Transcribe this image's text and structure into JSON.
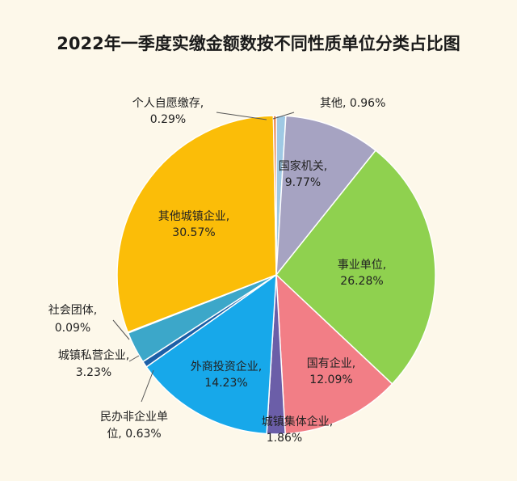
{
  "chart_data": {
    "type": "pie",
    "title": "2022年一季度实缴金额数按不同性质单位分类占比图",
    "slices": [
      {
        "name": "其他",
        "value": 0.96,
        "label": "0.96%",
        "color": "#9fc9e4"
      },
      {
        "name": "国家机关",
        "value": 9.77,
        "label": "9.77%",
        "color": "#a6a3c2"
      },
      {
        "name": "事业单位",
        "value": 26.28,
        "label": "26.28%",
        "color": "#8fd14f"
      },
      {
        "name": "国有企业",
        "value": 12.09,
        "label": "12.09%",
        "color": "#f27e86"
      },
      {
        "name": "城镇集体企业",
        "value": 1.86,
        "label": "1.86%",
        "color": "#6b5ea8"
      },
      {
        "name": "外商投资企业",
        "value": 14.23,
        "label": "14.23%",
        "color": "#17a8ea"
      },
      {
        "name": "民办非企业单位",
        "value": 0.63,
        "label": "0.63%",
        "color": "#1c5fa7"
      },
      {
        "name": "城镇私营企业",
        "value": 3.23,
        "label": "3.23%",
        "color": "#3ca7c9"
      },
      {
        "name": "社会团体",
        "value": 0.09,
        "label": "0.09%",
        "color": "#9fd6e6"
      },
      {
        "name": "其他城镇企业",
        "value": 30.57,
        "label": "30.57%",
        "color": "#fbbd08"
      },
      {
        "name": "个人自愿缴存",
        "value": 0.29,
        "label": "0.29%",
        "color": "#e8773a"
      }
    ]
  }
}
